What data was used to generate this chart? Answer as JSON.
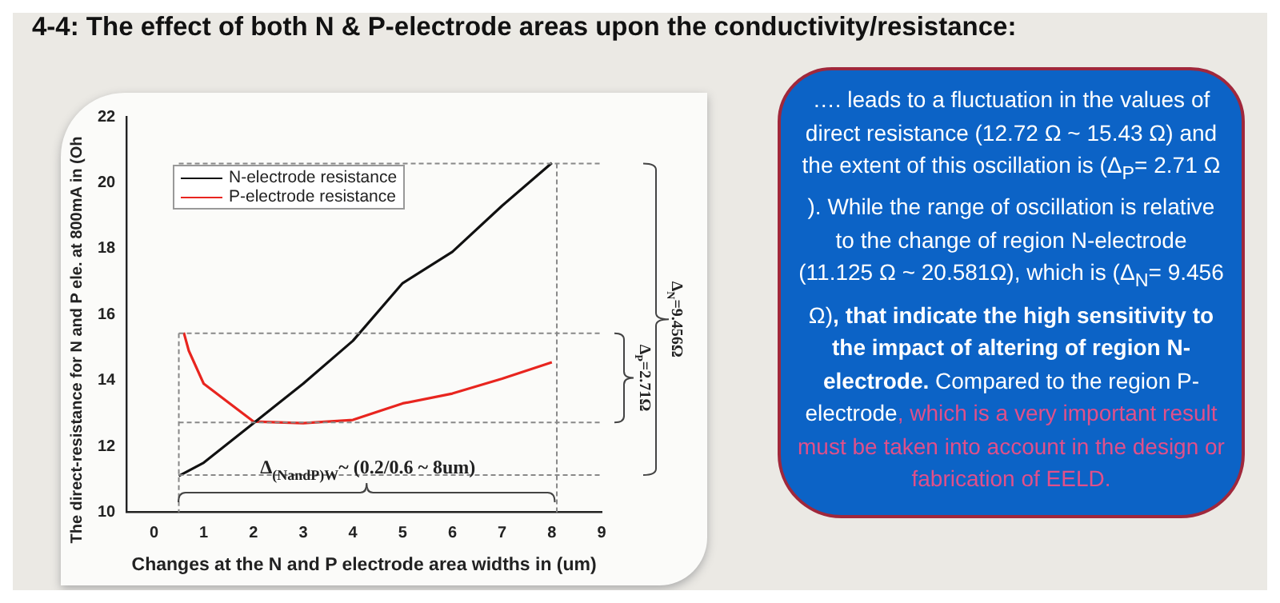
{
  "chart_data": {
    "type": "line",
    "title": "4-4: The effect of both N & P-electrode areas upon the conductivity/resistance:",
    "xlabel": "Changes at the N and P electrode area widths in (um)",
    "ylabel": "The direct-resistance for N and P ele. at 800mA in (Oh",
    "series": [
      {
        "name": "N-electrode resistance",
        "color": "#111111",
        "x": [
          0.5,
          1,
          2,
          3,
          4,
          5,
          6,
          7,
          8
        ],
        "values": [
          11.1,
          11.5,
          12.7,
          13.9,
          15.2,
          16.95,
          17.9,
          19.3,
          20.6
        ]
      },
      {
        "name": "P-electrode resistance",
        "color": "#e8251f",
        "x": [
          0.6,
          0.7,
          1,
          2,
          3,
          4,
          5,
          6,
          7,
          8
        ],
        "values": [
          15.45,
          14.9,
          13.9,
          12.75,
          12.7,
          12.8,
          13.3,
          13.6,
          14.05,
          14.55
        ]
      }
    ],
    "xlim": [
      -0.55,
      9
    ],
    "xticks": [
      0,
      1,
      2,
      3,
      4,
      5,
      6,
      7,
      8,
      9
    ],
    "ylim": [
      10,
      22
    ],
    "yticks": [
      10,
      12,
      14,
      16,
      18,
      20,
      22
    ],
    "grid": false,
    "legend": "top left",
    "marker": "none",
    "line_style": "solid",
    "ref_lines": [
      {
        "axis": "y",
        "value": 20.581,
        "color": "#888888",
        "line_style": "dashed"
      },
      {
        "axis": "y",
        "value": 15.43,
        "color": "#888888",
        "line_style": "dashed"
      },
      {
        "axis": "y",
        "value": 12.72,
        "color": "#888888",
        "line_style": "dashed"
      },
      {
        "axis": "y",
        "value": 11.125,
        "color": "#888888",
        "line_style": "dashed"
      },
      {
        "axis": "x",
        "value": 0.5,
        "color": "#888888",
        "line_style": "dashed"
      },
      {
        "axis": "x",
        "value": 8.1,
        "color": "#888888",
        "line_style": "dashed"
      }
    ],
    "annotations": [
      "Δ$_{(NandP)W}$~ (0.2/0.6 ~ 8um)",
      "Δ$_{N}$=9.456Ω",
      "Δ$_{P}$=2.71Ω",
      "…. leads to a fluctuation in the values of direct resistance  (12.72 Ω ~ 15.43 Ω) and the extent of this oscillation is (Δ$_{P}$= 2.71 Ω ). While the range of oscillation is relative to the change of region N-electrode (11.125 Ω ~ 20.581Ω), which is (Δ$_{N}$= 9.456 Ω)",
      ", that indicate the high sensitivity to the impact of altering of region N-electrode.",
      " Compared to the region P-electrode",
      ", which is a very important result must be taken into account in the design or fabrication of EELD."
    ]
  }
}
